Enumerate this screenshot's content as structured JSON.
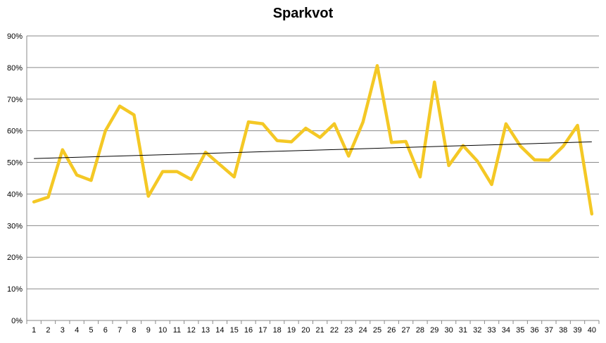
{
  "chart_data": {
    "type": "line",
    "title": "Sparkvot",
    "xlabel": "",
    "ylabel": "",
    "x": [
      1,
      2,
      3,
      4,
      5,
      6,
      7,
      8,
      9,
      10,
      11,
      12,
      13,
      14,
      15,
      16,
      17,
      18,
      19,
      20,
      21,
      22,
      23,
      24,
      25,
      26,
      27,
      28,
      29,
      30,
      31,
      32,
      33,
      34,
      35,
      36,
      37,
      38,
      39,
      40
    ],
    "series": [
      {
        "name": "",
        "values": [
          0.375,
          0.39,
          0.54,
          0.46,
          0.443,
          0.6,
          0.678,
          0.65,
          0.393,
          0.471,
          0.471,
          0.446,
          0.532,
          0.493,
          0.454,
          0.628,
          0.622,
          0.569,
          0.565,
          0.608,
          0.579,
          0.622,
          0.52,
          0.627,
          0.806,
          0.563,
          0.566,
          0.454,
          0.754,
          0.49,
          0.553,
          0.504,
          0.43,
          0.622,
          0.552,
          0.508,
          0.507,
          0.551,
          0.617,
          0.337
        ],
        "color": "#F4C825"
      }
    ],
    "trendline": {
      "type": "linear",
      "start": 0.512,
      "end": 0.565,
      "color": "#000000"
    },
    "ylim": [
      0,
      0.9
    ],
    "yticks": [
      "0%",
      "10%",
      "20%",
      "30%",
      "40%",
      "50%",
      "60%",
      "70%",
      "80%",
      "90%"
    ],
    "grid": true,
    "legend": "none"
  }
}
